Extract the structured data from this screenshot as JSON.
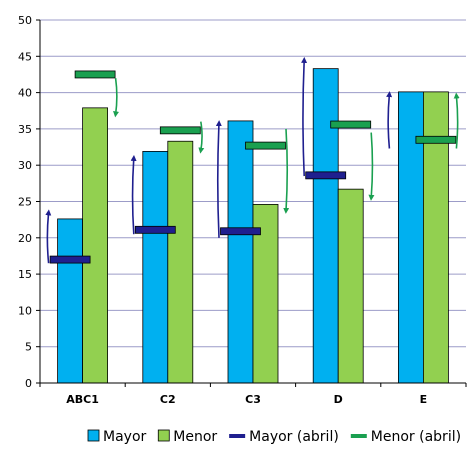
{
  "chart_data": {
    "type": "bar",
    "title": "",
    "xlabel": "",
    "ylabel": "",
    "categories": [
      "ABC1",
      "C2",
      "C3",
      "D",
      "E"
    ],
    "ylim": [
      0,
      50
    ],
    "yticks": [
      0,
      5,
      10,
      15,
      20,
      25,
      30,
      35,
      40,
      45,
      50
    ],
    "grid": true,
    "legend_position": "bottom",
    "series": [
      {
        "name": "Mayor",
        "kind": "bar",
        "color": "#00b0f0",
        "values": [
          22.6,
          31.9,
          36.1,
          43.3,
          40.1
        ]
      },
      {
        "name": "Menor",
        "kind": "bar",
        "color": "#92d050",
        "values": [
          37.9,
          33.3,
          24.6,
          26.7,
          40.1
        ]
      },
      {
        "name": "Mayor (abril)",
        "kind": "marker",
        "color": "#1f1f8f",
        "values": [
          17.0,
          21.1,
          20.9,
          28.6,
          null
        ]
      },
      {
        "name": "Menor (abril)",
        "kind": "marker",
        "color": "#1aa050",
        "values": [
          42.5,
          34.8,
          32.7,
          35.6,
          33.5
        ]
      }
    ],
    "change_arrows": [
      {
        "category": "ABC1",
        "series": "Mayor",
        "from": 16.5,
        "to": 23.5,
        "color": "#1f1f8f"
      },
      {
        "category": "ABC1",
        "series": "Menor",
        "from": 42.0,
        "to": 37.0,
        "color": "#1aa050"
      },
      {
        "category": "C2",
        "series": "Mayor",
        "from": 20.5,
        "to": 31.0,
        "color": "#1f1f8f"
      },
      {
        "category": "C2",
        "series": "Menor",
        "from": 36.0,
        "to": 32.0,
        "color": "#1aa050"
      },
      {
        "category": "C3",
        "series": "Mayor",
        "from": 20.0,
        "to": 35.8,
        "color": "#1f1f8f"
      },
      {
        "category": "C3",
        "series": "Menor",
        "from": 35.0,
        "to": 23.7,
        "color": "#1aa050"
      },
      {
        "category": "D",
        "series": "Mayor",
        "from": 28.5,
        "to": 44.5,
        "color": "#1f1f8f"
      },
      {
        "category": "D",
        "series": "Menor",
        "from": 34.5,
        "to": 25.5,
        "color": "#1aa050"
      },
      {
        "category": "E",
        "series": "Mayor",
        "from": 32.3,
        "to": 39.8,
        "color": "#1f1f8f"
      },
      {
        "category": "E",
        "series": "Menor",
        "from": 32.3,
        "to": 39.6,
        "color": "#1aa050"
      }
    ]
  },
  "legend": [
    {
      "label": "Mayor",
      "color": "#00b0f0",
      "symbol": "box"
    },
    {
      "label": "Menor",
      "color": "#92d050",
      "symbol": "box"
    },
    {
      "label": "Mayor (abril)",
      "color": "#1f1f8f",
      "symbol": "dash"
    },
    {
      "label": "Menor (abril)",
      "color": "#1aa050",
      "symbol": "dash"
    }
  ],
  "colors": {
    "grid": "#9c9cc8",
    "axis": "#000000",
    "bar_stroke": "#000000"
  }
}
